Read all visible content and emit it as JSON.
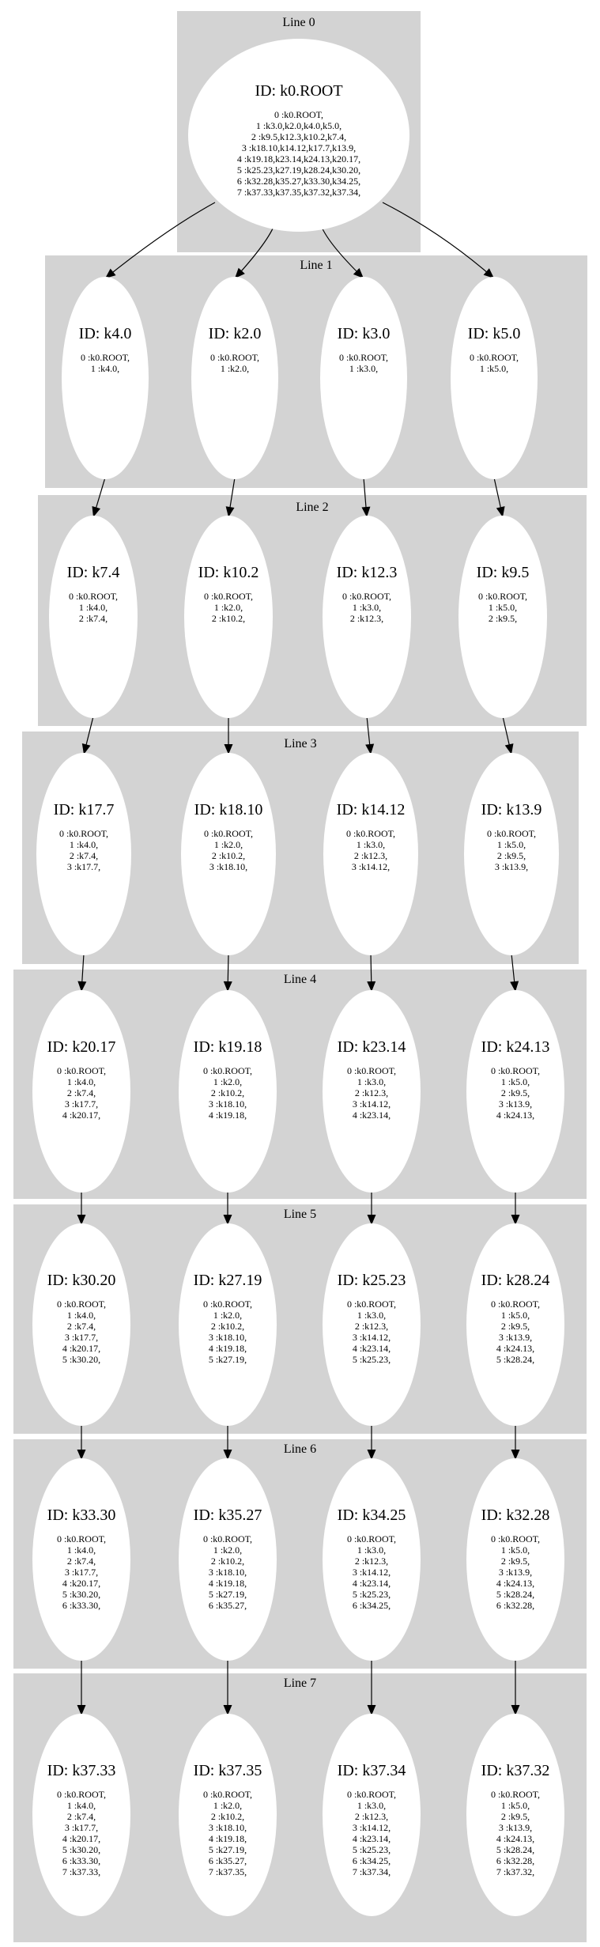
{
  "clusters": [
    {
      "label": "Line 0"
    },
    {
      "label": "Line 1"
    },
    {
      "label": "Line 2"
    },
    {
      "label": "Line 3"
    },
    {
      "label": "Line 4"
    },
    {
      "label": "Line 5"
    },
    {
      "label": "Line 6"
    },
    {
      "label": "Line 7"
    }
  ],
  "root": {
    "title": "ID: k0.ROOT",
    "lines": [
      "0 :k0.ROOT,",
      "1 :k3.0,k2.0,k4.0,k5.0,",
      "2 :k9.5,k12.3,k10.2,k7.4,",
      "3 :k18.10,k14.12,k17.7,k13.9,",
      "4 :k19.18,k23.14,k24.13,k20.17,",
      "5 :k25.23,k27.19,k28.24,k30.20,",
      "6 :k32.28,k35.27,k33.30,k34.25,",
      "7 :k37.33,k37.35,k37.32,k37.34,"
    ]
  },
  "columns": [
    {
      "ids": [
        "k4.0",
        "k7.4",
        "k17.7",
        "k20.17",
        "k30.20",
        "k33.30",
        "k37.33"
      ],
      "path": [
        "0 :k0.ROOT,",
        "1 :k4.0,",
        "2 :k7.4,",
        "3 :k17.7,",
        "4 :k20.17,",
        "5 :k30.20,",
        "6 :k33.30,",
        "7 :k37.33,"
      ]
    },
    {
      "ids": [
        "k2.0",
        "k10.2",
        "k18.10",
        "k19.18",
        "k27.19",
        "k35.27",
        "k37.35"
      ],
      "path": [
        "0 :k0.ROOT,",
        "1 :k2.0,",
        "2 :k10.2,",
        "3 :k18.10,",
        "4 :k19.18,",
        "5 :k27.19,",
        "6 :k35.27,",
        "7 :k37.35,"
      ]
    },
    {
      "ids": [
        "k3.0",
        "k12.3",
        "k14.12",
        "k23.14",
        "k25.23",
        "k34.25",
        "k37.34"
      ],
      "path": [
        "0 :k0.ROOT,",
        "1 :k3.0,",
        "2 :k12.3,",
        "3 :k14.12,",
        "4 :k23.14,",
        "5 :k25.23,",
        "6 :k34.25,",
        "7 :k37.34,"
      ]
    },
    {
      "ids": [
        "k5.0",
        "k9.5",
        "k13.9",
        "k24.13",
        "k28.24",
        "k32.28",
        "k37.32"
      ],
      "path": [
        "0 :k0.ROOT,",
        "1 :k5.0,",
        "2 :k9.5,",
        "3 :k13.9,",
        "4 :k24.13,",
        "5 :k28.24,",
        "6 :k32.28,",
        "7 :k37.32,"
      ]
    }
  ],
  "id_prefix": "ID: "
}
